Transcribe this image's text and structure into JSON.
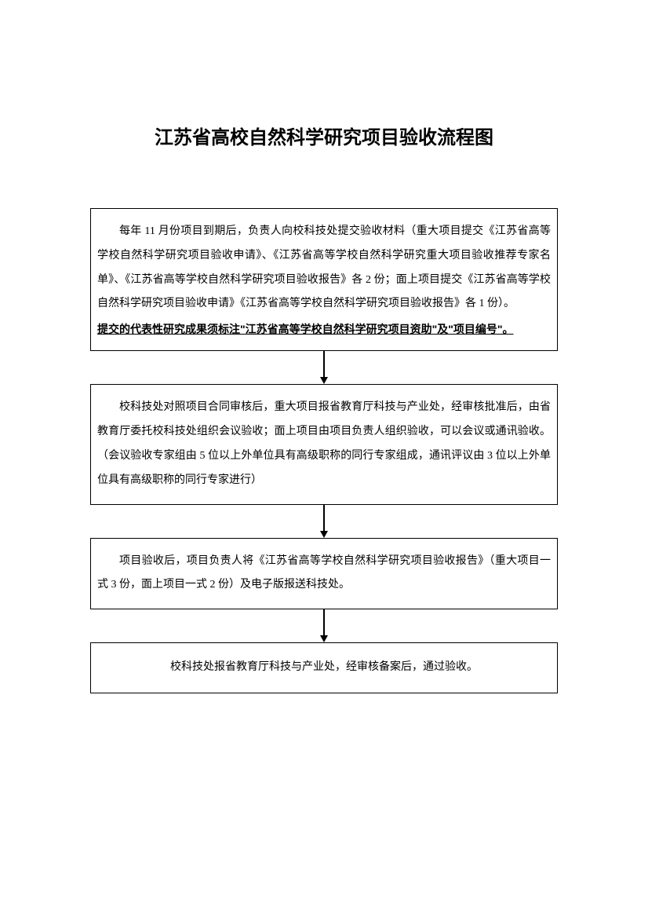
{
  "title": "江苏省高校自然科学研究项目验收流程图",
  "flowchart": {
    "type": "flowchart",
    "direction": "vertical",
    "border_color": "#000000",
    "background_color": "#ffffff",
    "text_color": "#000000",
    "box_border_width": 1.5,
    "title_fontsize": 24,
    "body_fontsize": 14,
    "line_height": 2.2,
    "arrow_height": 42,
    "nodes": [
      {
        "id": "step1",
        "text": "每年 11 月份项目到期后，负责人向校科技处提交验收材料（重大项目提交《江苏省高等学校自然科学研究项目验收申请》、《江苏省高等学校自然科学研究重大项目验收推荐专家名单》、《江苏省高等学校自然科学研究项目验收报告》各 2 份；面上项目提交《江苏省高等学校自然科学研究项目验收申请》《江苏省高等学校自然科学研究项目验收报告》各 1 份）。",
        "note": "提交的代表性研究成果须标注\"江苏省高等学校自然科学研究项目资助\"及\"项目编号\"。"
      },
      {
        "id": "step2",
        "text": "校科技处对照项目合同审核后，重大项目报省教育厅科技与产业处，经审核批准后，由省教育厅委托校科技处组织会议验收；面上项目由项目负责人组织验收，可以会议或通讯验收。（会议验收专家组由 5 位以上外单位具有高级职称的同行专家组成，通讯评议由 3 位以上外单位具有高级职称的同行专家进行）"
      },
      {
        "id": "step3",
        "text": "项目验收后，项目负责人将《江苏省高等学校自然科学研究项目验收报告》（重大项目一式 3 份，面上项目一式 2 份）及电子版报送科技处。"
      },
      {
        "id": "step4",
        "text": "校科技处报省教育厅科技与产业处，经审核备案后，通过验收。"
      }
    ],
    "edges": [
      {
        "from": "step1",
        "to": "step2"
      },
      {
        "from": "step2",
        "to": "step3"
      },
      {
        "from": "step3",
        "to": "step4"
      }
    ]
  }
}
